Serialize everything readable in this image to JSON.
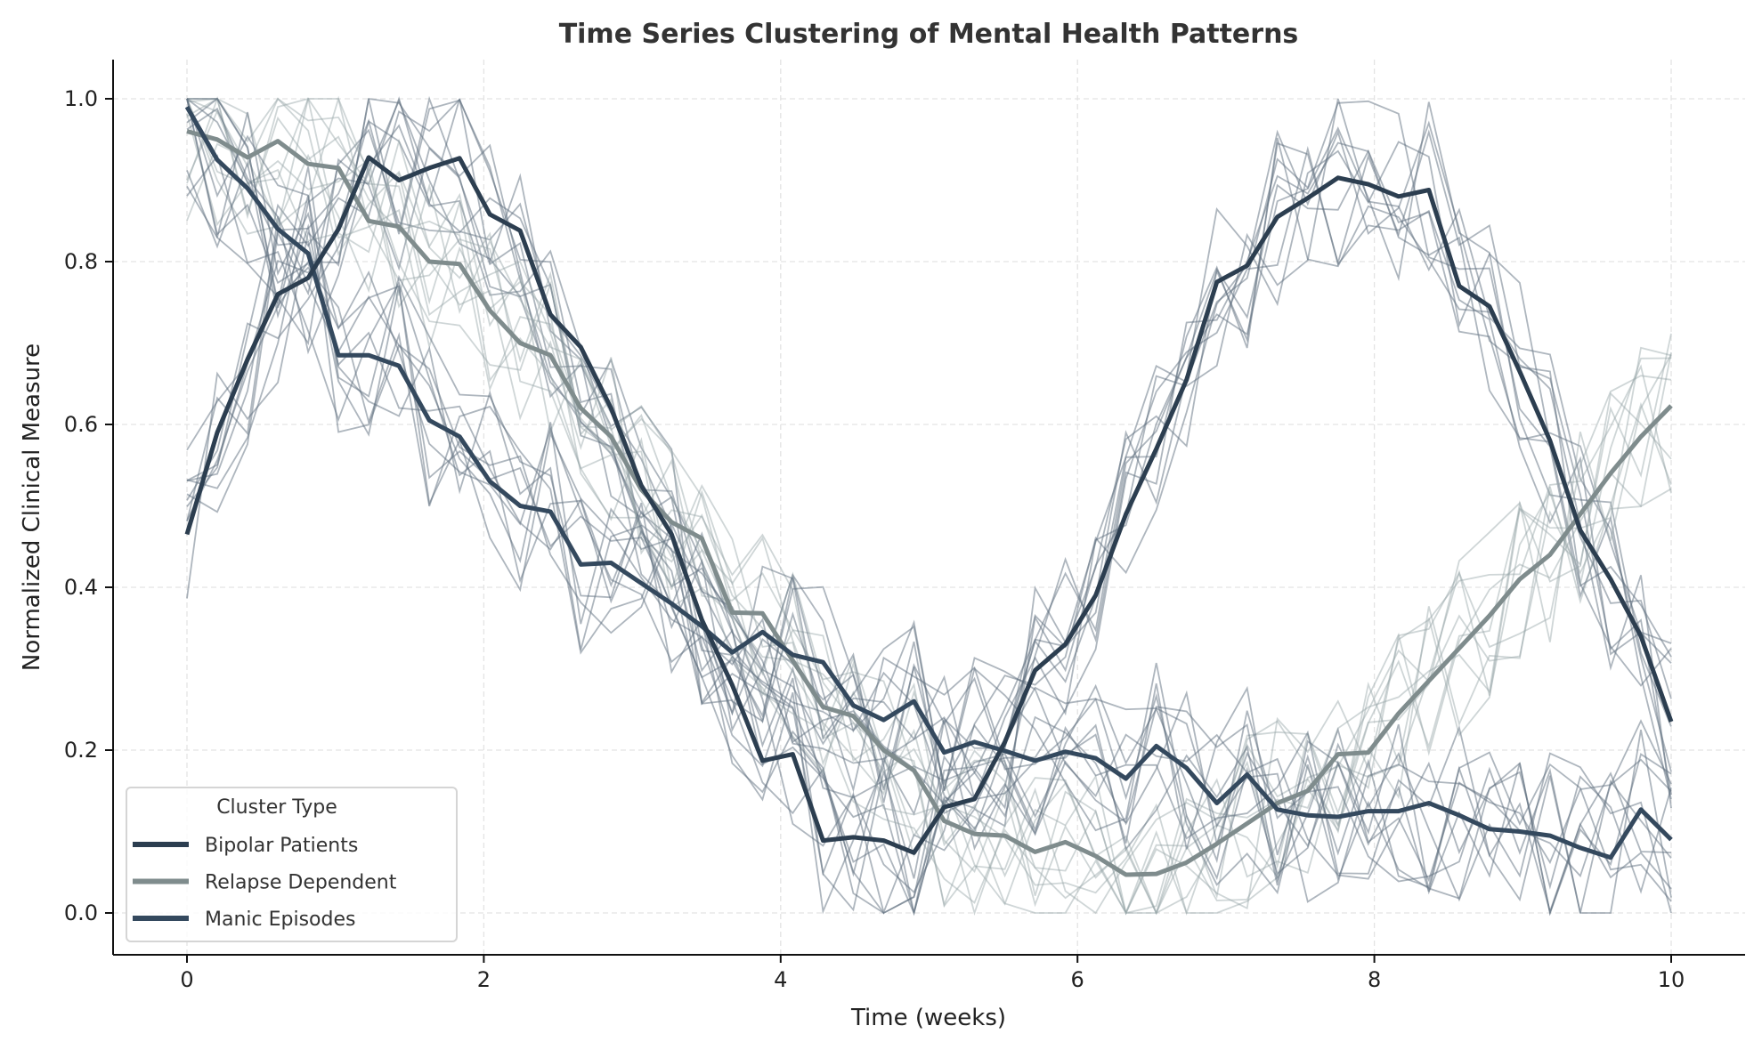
{
  "chart_data": {
    "type": "line",
    "title": "Time Series Clustering of Mental Health Patterns",
    "xlabel": "Time (weeks)",
    "ylabel": "Normalized Clinical Measure",
    "xlim": [
      -0.5,
      10.5
    ],
    "ylim": [
      -0.05,
      1.05
    ],
    "x_ticks": [
      "0",
      "2",
      "4",
      "6",
      "8",
      "10"
    ],
    "y_ticks": [
      "0.0",
      "0.2",
      "0.4",
      "0.6",
      "0.8",
      "1.0"
    ],
    "grid": true,
    "legend": {
      "title": "Cluster Type",
      "placement": "lower-left"
    },
    "x_range": {
      "start": 0,
      "end": 10,
      "points": 50
    },
    "series": [
      {
        "name": "Bipolar Patients",
        "color": "#2c3e50",
        "values": [
          0.465,
          0.59,
          0.68,
          0.76,
          0.78,
          0.84,
          0.928,
          0.9,
          0.915,
          0.927,
          0.858,
          0.838,
          0.735,
          0.695,
          0.62,
          0.525,
          0.465,
          0.36,
          0.28,
          0.187,
          0.195,
          0.089,
          0.093,
          0.089,
          0.074,
          0.13,
          0.14,
          0.21,
          0.298,
          0.33,
          0.39,
          0.49,
          0.57,
          0.655,
          0.775,
          0.795,
          0.855,
          0.878,
          0.903,
          0.895,
          0.88,
          0.888,
          0.77,
          0.745,
          0.665,
          0.58,
          0.47,
          0.41,
          0.34,
          0.235
        ]
      },
      {
        "name": "Relapse Dependent",
        "color": "#7f8c8d",
        "values": [
          0.96,
          0.95,
          0.928,
          0.948,
          0.92,
          0.915,
          0.85,
          0.843,
          0.8,
          0.797,
          0.74,
          0.7,
          0.685,
          0.62,
          0.585,
          0.52,
          0.48,
          0.46,
          0.369,
          0.368,
          0.31,
          0.253,
          0.242,
          0.2,
          0.175,
          0.113,
          0.097,
          0.095,
          0.075,
          0.087,
          0.07,
          0.047,
          0.048,
          0.062,
          0.085,
          0.11,
          0.135,
          0.15,
          0.195,
          0.197,
          0.245,
          0.285,
          0.325,
          0.365,
          0.41,
          0.44,
          0.49,
          0.54,
          0.585,
          0.623
        ]
      },
      {
        "name": "Manic Episodes",
        "color": "#34495e",
        "values": [
          0.99,
          0.925,
          0.89,
          0.84,
          0.81,
          0.685,
          0.685,
          0.672,
          0.605,
          0.585,
          0.53,
          0.5,
          0.493,
          0.428,
          0.43,
          0.405,
          0.38,
          0.352,
          0.32,
          0.345,
          0.317,
          0.308,
          0.255,
          0.237,
          0.26,
          0.197,
          0.21,
          0.199,
          0.187,
          0.198,
          0.19,
          0.165,
          0.205,
          0.178,
          0.135,
          0.17,
          0.127,
          0.12,
          0.118,
          0.125,
          0.125,
          0.135,
          0.12,
          0.103,
          0.1,
          0.095,
          0.08,
          0.068,
          0.127,
          0.09
        ]
      }
    ],
    "member_trace_colors": [
      "#5d6d7e",
      "#95a5a6",
      "#5d6d7e"
    ]
  }
}
